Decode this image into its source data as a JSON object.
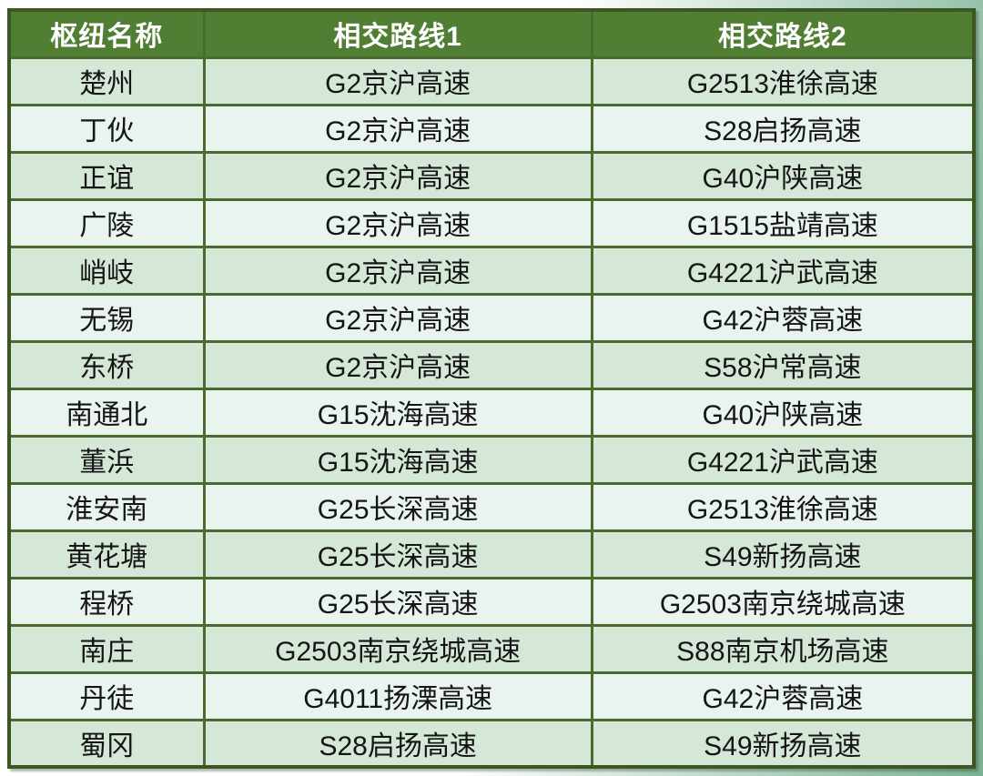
{
  "chart_data": {
    "type": "table",
    "columns": [
      "枢纽名称",
      "相交路线1",
      "相交路线2"
    ],
    "rows": [
      [
        "楚州",
        "G2京沪高速",
        "G2513淮徐高速"
      ],
      [
        "丁伙",
        "G2京沪高速",
        "S28启扬高速"
      ],
      [
        "正谊",
        "G2京沪高速",
        "G40沪陕高速"
      ],
      [
        "广陵",
        "G2京沪高速",
        "G1515盐靖高速"
      ],
      [
        "峭岐",
        "G2京沪高速",
        "G4221沪武高速"
      ],
      [
        "无锡",
        "G2京沪高速",
        "G42沪蓉高速"
      ],
      [
        "东桥",
        "G2京沪高速",
        "S58沪常高速"
      ],
      [
        "南通北",
        "G15沈海高速",
        "G40沪陕高速"
      ],
      [
        "董浜",
        "G15沈海高速",
        "G4221沪武高速"
      ],
      [
        "淮安南",
        "G25长深高速",
        "G2513淮徐高速"
      ],
      [
        "黄花塘",
        "G25长深高速",
        "S49新扬高速"
      ],
      [
        "程桥",
        "G25长深高速",
        "G2503南京绕城高速"
      ],
      [
        "南庄",
        "G2503南京绕城高速",
        "S88南京机场高速"
      ],
      [
        "丹徒",
        "G4011扬溧高速",
        "G42沪蓉高速"
      ],
      [
        "蜀冈",
        "S28启扬高速",
        "S49新扬高速"
      ]
    ],
    "layout_hints": {
      "header_style": "dark-green band, white bold text",
      "row_striping": "odd rows sage green, even rows pale mint",
      "grid": "on"
    }
  },
  "colors": {
    "header_bg": "#507e33",
    "header_text": "#ffffff",
    "row_odd": "#d5e8d8",
    "row_even": "#eaf4ee",
    "grid_line": "#4a6b2f",
    "outer_border": "#3c5624",
    "body_text": "#151515",
    "bg_white": "#ffffff",
    "bg_teal": "#7ab294"
  }
}
